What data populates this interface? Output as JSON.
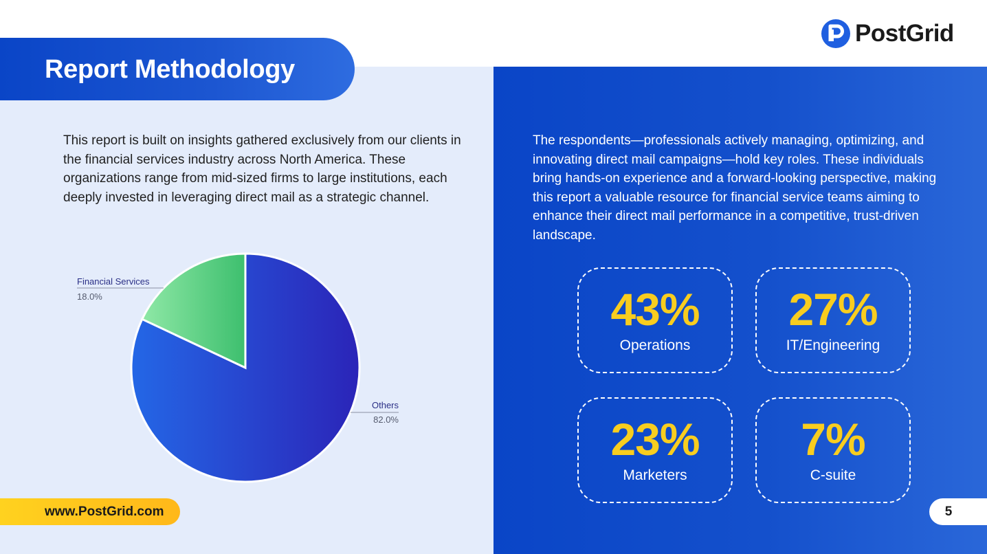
{
  "header": {
    "title": "Report Methodology",
    "logo_text": "PostGrid",
    "logo_icon": "postgrid-logo-icon"
  },
  "left": {
    "intro": "This report is built on insights gathered exclusively from our clients in the financial services industry across North America. These organizations range from mid-sized firms to large institutions, each deeply invested in leveraging direct mail as a strategic channel."
  },
  "chart_data": {
    "type": "pie",
    "slices": [
      {
        "label": "Financial Services",
        "value": 18.0,
        "value_label": "18.0%",
        "color": "#4cc97a"
      },
      {
        "label": "Others",
        "value": 82.0,
        "value_label": "82.0%",
        "color": "#2240d6"
      }
    ]
  },
  "right": {
    "intro": "The respondents—professionals actively managing, optimizing, and innovating direct mail campaigns—hold key roles. These individuals bring hands-on experience and a forward-looking perspective, making this report a valuable resource for financial service teams aiming to enhance their direct mail performance in a competitive, trust-driven landscape.",
    "stats": [
      {
        "value": "43%",
        "label": "Operations"
      },
      {
        "value": "27%",
        "label": "IT/Engineering"
      },
      {
        "value": "23%",
        "label": "Marketers"
      },
      {
        "value": "7%",
        "label": "C-suite"
      }
    ]
  },
  "footer": {
    "url": "www.PostGrid.com",
    "page_number": "5"
  },
  "colors": {
    "brand_blue": "#0a45c7",
    "accent_yellow": "#f8cd1f",
    "panel_light": "#e4ecfb"
  }
}
